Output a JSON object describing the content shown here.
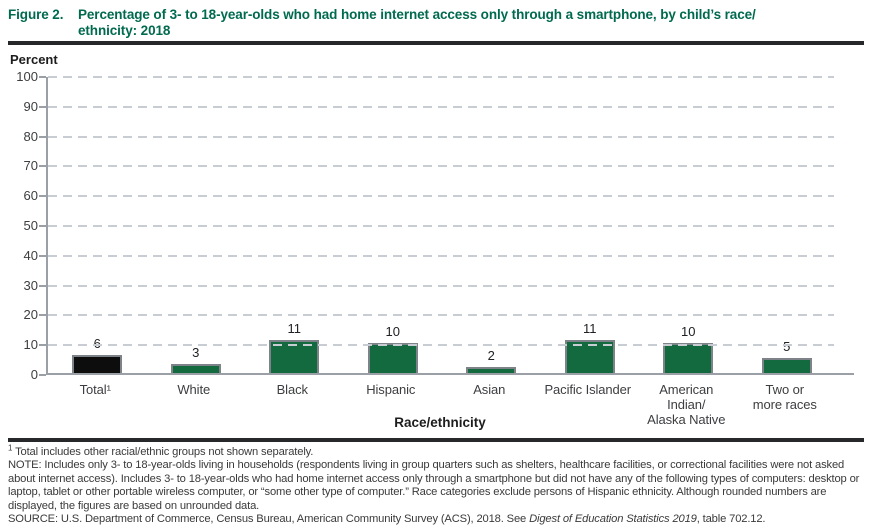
{
  "figure": {
    "label": "Figure 2.",
    "title_line1": "Percentage of 3- to 18-year-olds who had home internet access only through a smartphone, by child’s race/",
    "title_line2": "ethnicity: 2018"
  },
  "chart_data": {
    "type": "bar",
    "title": "Percentage of 3- to 18-year-olds who had home internet access only through a smartphone, by child’s race/ethnicity: 2018",
    "ylabel": "Percent",
    "xlabel": "Race/ethnicity",
    "ylim": [
      0,
      100
    ],
    "ytick_step": 10,
    "grid": "horizontal dashed gridlines at every 10",
    "legend": "none",
    "categories": [
      "Total¹",
      "White",
      "Black",
      "Hispanic",
      "Asian",
      "Pacific Islander",
      "American Indian/Alaska Native",
      "Two or more races"
    ],
    "category_lines": [
      [
        "Total¹"
      ],
      [
        "White"
      ],
      [
        "Black"
      ],
      [
        "Hispanic"
      ],
      [
        "Asian"
      ],
      [
        "Pacific Islander"
      ],
      [
        "American",
        "Indian/",
        "Alaska Native"
      ],
      [
        "Two or",
        "more races"
      ]
    ],
    "values": [
      6,
      3,
      11,
      10,
      2,
      11,
      10,
      5
    ],
    "bar_colors": [
      "#0d0d0d",
      "#146a3f",
      "#146a3f",
      "#146a3f",
      "#146a3f",
      "#146a3f",
      "#146a3f",
      "#146a3f"
    ]
  },
  "colors": {
    "title_green": "#006a4f",
    "bar_green": "#146a3f",
    "bar_black": "#0d0d0d",
    "gridline_gray": "#c8cdd4",
    "axis_gray": "#9ba0a6"
  },
  "footnotes": {
    "footnote1_sup": "1",
    "footnote1_text": " Total includes other racial/ethnic groups not shown separately.",
    "note_text": "NOTE: Includes only 3- to 18-year-olds living in households (respondents living in group quarters such as shelters, healthcare facilities, or correctional facilities were not asked about internet access). Includes 3- to 18-year-olds who had home internet access only through a smartphone but did not have any of the following types of computers: desktop or laptop, tablet or other portable wireless computer, or “some other type of computer.” Race categories exclude persons of Hispanic ethnicity. Although rounded numbers are displayed, the figures are based on unrounded data.",
    "source_prefix": "SOURCE: U.S. Department of Commerce, Census Bureau, American Community Survey (ACS), 2018. See ",
    "source_italic": "Digest of Education Statistics 2019",
    "source_suffix": ", table 702.12."
  }
}
